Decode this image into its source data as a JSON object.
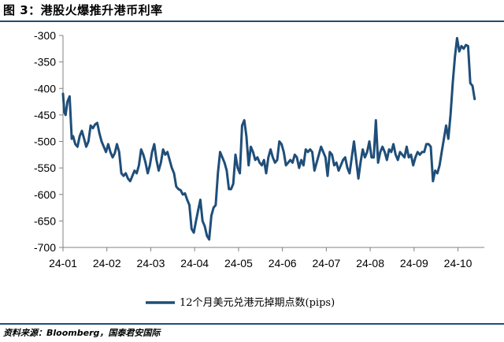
{
  "header": {
    "title": "图 3：港股火爆推升港币利率"
  },
  "footer": {
    "source": "资料来源：Bloomberg，国泰君安国际"
  },
  "colors": {
    "line": "#1f4e79",
    "rule": "#1f4e79",
    "axis": "#808080"
  },
  "chart_data": {
    "type": "line",
    "title": "港股火爆推升港币利率",
    "xlabel": "",
    "ylabel": "",
    "ylim": [
      -700,
      -300
    ],
    "yticks": [
      -300,
      -350,
      -400,
      -450,
      -500,
      -550,
      -600,
      -650,
      -700
    ],
    "xticks": [
      "24-01",
      "24-02",
      "24-03",
      "24-04",
      "24-05",
      "24-06",
      "24-07",
      "24-08",
      "24-09",
      "24-10"
    ],
    "xlim": [
      0,
      9.6
    ],
    "grid": false,
    "legend": "bottom-center",
    "series": [
      {
        "name": "12个月美元兑港元掉期点数(pips)",
        "x": [
          0.0,
          0.03,
          0.06,
          0.1,
          0.15,
          0.2,
          0.23,
          0.28,
          0.33,
          0.38,
          0.43,
          0.48,
          0.53,
          0.58,
          0.63,
          0.68,
          0.73,
          0.78,
          0.83,
          0.88,
          0.93,
          0.98,
          1.03,
          1.08,
          1.13,
          1.18,
          1.23,
          1.28,
          1.33,
          1.38,
          1.43,
          1.48,
          1.53,
          1.58,
          1.63,
          1.68,
          1.73,
          1.78,
          1.83,
          1.88,
          1.93,
          1.98,
          2.03,
          2.08,
          2.13,
          2.18,
          2.23,
          2.28,
          2.33,
          2.38,
          2.43,
          2.48,
          2.53,
          2.58,
          2.63,
          2.68,
          2.73,
          2.78,
          2.83,
          2.88,
          2.93,
          2.98,
          3.03,
          3.08,
          3.13,
          3.18,
          3.23,
          3.28,
          3.33,
          3.38,
          3.43,
          3.48,
          3.53,
          3.58,
          3.63,
          3.68,
          3.73,
          3.78,
          3.83,
          3.88,
          3.93,
          3.98,
          4.03,
          4.08,
          4.13,
          4.18,
          4.23,
          4.28,
          4.33,
          4.38,
          4.43,
          4.48,
          4.53,
          4.58,
          4.63,
          4.68,
          4.73,
          4.78,
          4.83,
          4.88,
          4.93,
          4.98,
          5.03,
          5.08,
          5.13,
          5.18,
          5.23,
          5.28,
          5.33,
          5.38,
          5.43,
          5.48,
          5.53,
          5.58,
          5.63,
          5.68,
          5.73,
          5.78,
          5.83,
          5.88,
          5.93,
          5.98,
          6.03,
          6.08,
          6.13,
          6.18,
          6.23,
          6.28,
          6.33,
          6.38,
          6.43,
          6.48,
          6.53,
          6.58,
          6.63,
          6.68,
          6.73,
          6.78,
          6.83,
          6.88,
          6.93,
          6.98,
          7.03,
          7.08,
          7.13,
          7.18,
          7.23,
          7.28,
          7.33,
          7.38,
          7.43,
          7.48,
          7.53,
          7.58,
          7.63,
          7.68,
          7.73,
          7.78,
          7.83,
          7.88,
          7.93,
          7.98,
          8.03,
          8.08,
          8.13,
          8.18,
          8.23,
          8.28,
          8.33,
          8.38,
          8.43,
          8.48,
          8.53,
          8.58,
          8.63,
          8.68,
          8.73,
          8.78,
          8.83,
          8.88,
          8.93,
          8.98,
          9.03,
          9.08,
          9.13,
          9.18,
          9.23,
          9.28,
          9.33,
          9.38
        ],
        "values": [
          -410,
          -445,
          -450,
          -425,
          -415,
          -495,
          -490,
          -505,
          -510,
          -490,
          -480,
          -495,
          -510,
          -500,
          -470,
          -475,
          -468,
          -465,
          -485,
          -500,
          -510,
          -520,
          -505,
          -520,
          -530,
          -522,
          -505,
          -520,
          -560,
          -565,
          -560,
          -570,
          -575,
          -565,
          -555,
          -560,
          -545,
          -515,
          -525,
          -540,
          -560,
          -545,
          -520,
          -505,
          -535,
          -555,
          -540,
          -515,
          -525,
          -520,
          -535,
          -550,
          -560,
          -585,
          -590,
          -592,
          -600,
          -598,
          -610,
          -620,
          -665,
          -672,
          -650,
          -630,
          -610,
          -650,
          -660,
          -678,
          -685,
          -640,
          -625,
          -620,
          -560,
          -520,
          -530,
          -540,
          -555,
          -590,
          -590,
          -580,
          -525,
          -550,
          -560,
          -470,
          -460,
          -490,
          -545,
          -510,
          -520,
          -535,
          -530,
          -540,
          -545,
          -535,
          -560,
          -530,
          -515,
          -530,
          -540,
          -535,
          -500,
          -505,
          -520,
          -545,
          -540,
          -535,
          -540,
          -525,
          -530,
          -550,
          -535,
          -545,
          -515,
          -520,
          -515,
          -520,
          -555,
          -540,
          -525,
          -510,
          -520,
          -530,
          -565,
          -520,
          -525,
          -545,
          -540,
          -555,
          -545,
          -535,
          -530,
          -550,
          -560,
          -530,
          -500,
          -535,
          -570,
          -540,
          -515,
          -530,
          -520,
          -500,
          -530,
          -530,
          -460,
          -540,
          -520,
          -510,
          -520,
          -535,
          -515,
          -520,
          -505,
          -525,
          -535,
          -520,
          -525,
          -530,
          -510,
          -530,
          -525,
          -545,
          -530,
          -520,
          -525,
          -520,
          -520,
          -505,
          -505,
          -510,
          -575,
          -555,
          -560,
          -545,
          -520,
          -495,
          -470,
          -495,
          -450,
          -390,
          -340,
          -305,
          -330,
          -320,
          -325,
          -318,
          -320,
          -390,
          -395,
          -420
        ]
      }
    ]
  }
}
